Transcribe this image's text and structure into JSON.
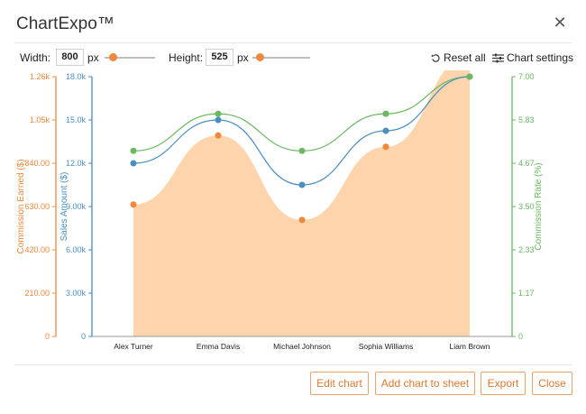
{
  "app": {
    "title": "ChartExpo™",
    "close_icon": "close-icon"
  },
  "controls": {
    "width_label": "Width:",
    "width_value": "800",
    "width_unit": "px",
    "height_label": "Height:",
    "height_value": "525",
    "height_unit": "px",
    "reset_label": "Reset all",
    "settings_label": "Chart settings"
  },
  "footer": {
    "edit_label": "Edit chart",
    "add_label": "Add chart to sheet",
    "export_label": "Export",
    "close_label": "Close"
  },
  "colors": {
    "orange": "#f0883c",
    "area": "#fdd4ac",
    "blue": "#4a8ec2",
    "green": "#6ab960",
    "button_text": "#e0782f"
  },
  "chart_data": {
    "type": "area",
    "categories": [
      "Alex Turner",
      "Emma Davis",
      "Michael Johnson",
      "Sophia Williams",
      "Liam Brown"
    ],
    "series": [
      {
        "name": "Commission Earned ($)",
        "type": "area",
        "axis": "left-outer",
        "values": [
          640,
          975,
          565,
          920,
          1360
        ]
      },
      {
        "name": "Sales Amount ($)",
        "type": "line",
        "axis": "left-inner",
        "values": [
          12000,
          15000,
          10500,
          14250,
          18000
        ]
      },
      {
        "name": "Commission Rate (%)",
        "type": "line",
        "axis": "right",
        "values": [
          5.0,
          6.0,
          5.0,
          6.0,
          7.0
        ]
      }
    ],
    "axes": {
      "left_outer": {
        "label": "Commission Earned ($)",
        "ticks": [
          "0",
          "210.00",
          "420.00",
          "630.00",
          "840.00",
          "1.05k",
          "1.26k"
        ],
        "ylim": [
          0,
          1260
        ]
      },
      "left_inner": {
        "label": "Sales Amount ($)",
        "ticks": [
          "0",
          "3.00k",
          "6.00k",
          "9.00k",
          "12.0k",
          "15.0k",
          "18.0k"
        ],
        "ylim": [
          0,
          18000
        ]
      },
      "right": {
        "label": "Commission Rate (%)",
        "ticks": [
          "0",
          "1.17",
          "2.33",
          "3.50",
          "4.67",
          "5.83",
          "7.00"
        ],
        "ylim": [
          0,
          7
        ]
      }
    },
    "grid": false,
    "legend": "none"
  }
}
